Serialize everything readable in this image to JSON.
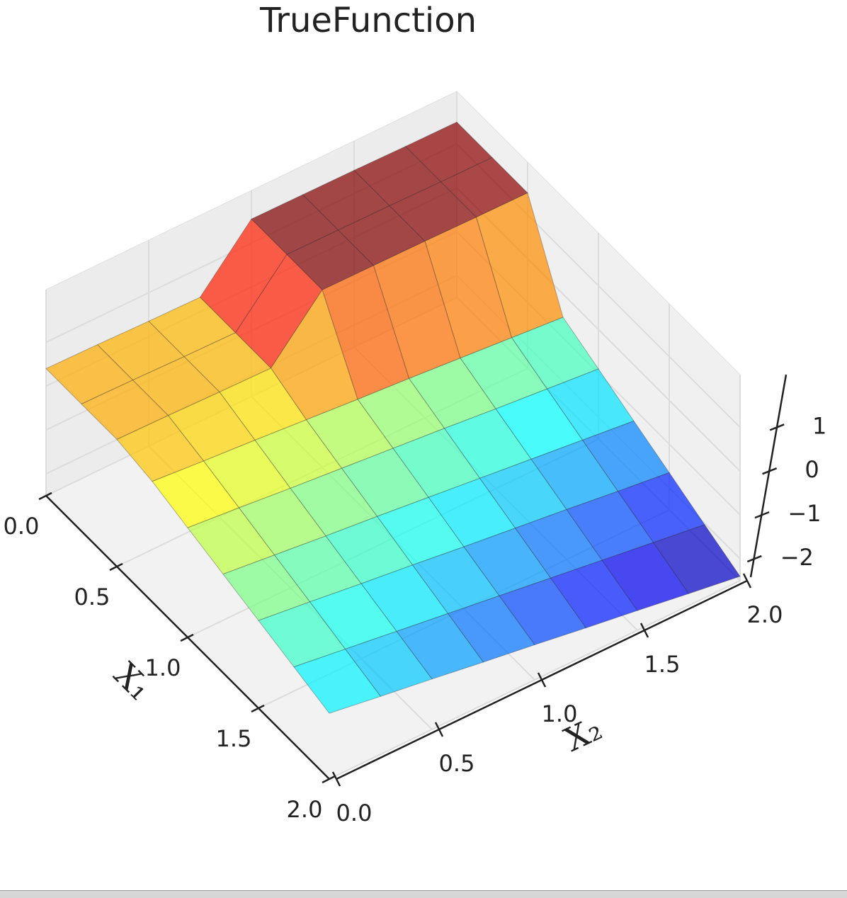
{
  "chart_data": {
    "type": "surface",
    "title": "TrueFunction",
    "xlabel": "X₁",
    "ylabel": "X₂",
    "x": [
      0,
      0.25,
      0.5,
      0.75,
      1,
      1.25,
      1.5,
      1.75,
      2
    ],
    "y": [
      0,
      0.25,
      0.5,
      0.75,
      1,
      1.25,
      1.5,
      1.75,
      2
    ],
    "z": [
      [
        0.4,
        0.38,
        0.35,
        0.33,
        1.55,
        1.54,
        1.53,
        1.51,
        1.5
      ],
      [
        0.4,
        0.38,
        0.35,
        0.33,
        1.55,
        1.54,
        1.53,
        1.51,
        1.5
      ],
      [
        0.4,
        0.38,
        0.35,
        0.33,
        1.55,
        1.54,
        1.53,
        1.51,
        1.5
      ],
      [
        0.25,
        0.15,
        0.06,
        -0.04,
        -0.14,
        -0.23,
        -0.33,
        -0.43,
        -0.53
      ],
      [
        0,
        -0.11,
        -0.23,
        -0.34,
        -0.45,
        -0.56,
        -0.68,
        -0.79,
        -0.9
      ],
      [
        -0.25,
        -0.38,
        -0.51,
        -0.63,
        -0.76,
        -0.89,
        -1.02,
        -1.15,
        -1.28
      ],
      [
        -0.5,
        -0.64,
        -0.79,
        -0.93,
        -1.08,
        -1.22,
        -1.36,
        -1.51,
        -1.65
      ],
      [
        -0.75,
        -0.91,
        -1.07,
        -1.23,
        -1.39,
        -1.55,
        -1.71,
        -1.87,
        -2.03
      ],
      [
        -1,
        -1.18,
        -1.35,
        -1.53,
        -1.7,
        -1.88,
        -2.05,
        -2.23,
        -2.4
      ]
    ],
    "xlim": [
      0,
      2
    ],
    "ylim": [
      0,
      2
    ],
    "zlim": [
      -2.5,
      2.2
    ],
    "xticks": [
      {
        "value": 0,
        "label": "0.0"
      },
      0.5,
      {
        "value": 1,
        "label": "1.0"
      },
      1.5,
      {
        "value": 2,
        "label": "2.0"
      }
    ],
    "yticks": [
      {
        "value": 0,
        "label": "0.0"
      },
      0.5,
      {
        "value": 1,
        "label": "1.0"
      },
      1.5,
      {
        "value": 2,
        "label": "2.0"
      }
    ],
    "zticks": [
      {
        "value": -2,
        "label": "−2"
      },
      {
        "value": -1,
        "label": "−1"
      },
      0,
      1
    ],
    "colormap": "jet",
    "alpha": 0.7,
    "grid": true
  }
}
